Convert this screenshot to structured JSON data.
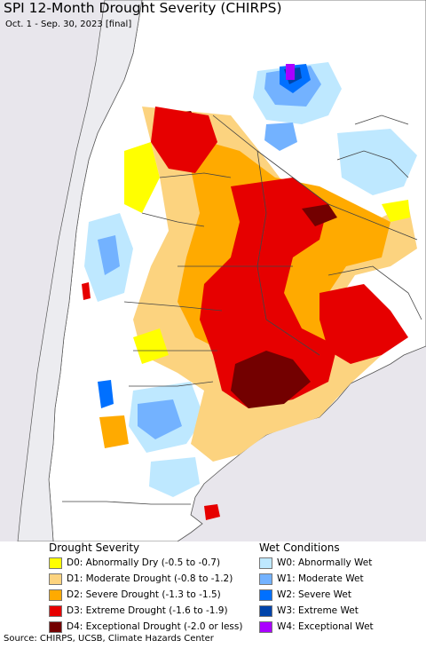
{
  "title": "SPI 12-Month Drought Severity (CHIRPS)",
  "subtitle": "Oct. 1 - Sep. 30, 2023 [final]",
  "colors": {
    "ocean": "#e8e6ec",
    "land": "#ffffff",
    "border": "#444444",
    "D0": "#ffff00",
    "D1": "#fcd37f",
    "D2": "#ffaa00",
    "D3": "#e60000",
    "D4": "#730000",
    "W0": "#bee8ff",
    "W1": "#73b2ff",
    "W2": "#0070ff",
    "W3": "#0044aa",
    "W4": "#aa00ff"
  },
  "legend": {
    "drought_heading": "Drought Severity",
    "wet_heading": "Wet Conditions",
    "drought_items": [
      {
        "code": "D0",
        "label": "D0: Abnormally Dry (-0.5 to -0.7)",
        "color": "#ffff00"
      },
      {
        "code": "D1",
        "label": "D1: Moderate Drought (-0.8 to -1.2)",
        "color": "#fcd37f"
      },
      {
        "code": "D2",
        "label": "D2: Severe Drought (-1.3 to -1.5)",
        "color": "#ffaa00"
      },
      {
        "code": "D3",
        "label": "D3: Extreme Drought (-1.6 to -1.9)",
        "color": "#e60000"
      },
      {
        "code": "D4",
        "label": "D4: Exceptional Drought (-2.0 or less)",
        "color": "#730000"
      }
    ],
    "wet_items": [
      {
        "code": "W0",
        "label": "W0: Abnormally Wet",
        "color": "#bee8ff"
      },
      {
        "code": "W1",
        "label": "W1: Moderate Wet",
        "color": "#73b2ff"
      },
      {
        "code": "W2",
        "label": "W2: Severe Wet",
        "color": "#0070ff"
      },
      {
        "code": "W3",
        "label": "W3: Extreme Wet",
        "color": "#0044aa"
      },
      {
        "code": "W4",
        "label": "W4: Exceptional Wet",
        "color": "#aa00ff"
      }
    ]
  },
  "source": "Source: CHIRPS, UCSB, Climate Hazards Center"
}
